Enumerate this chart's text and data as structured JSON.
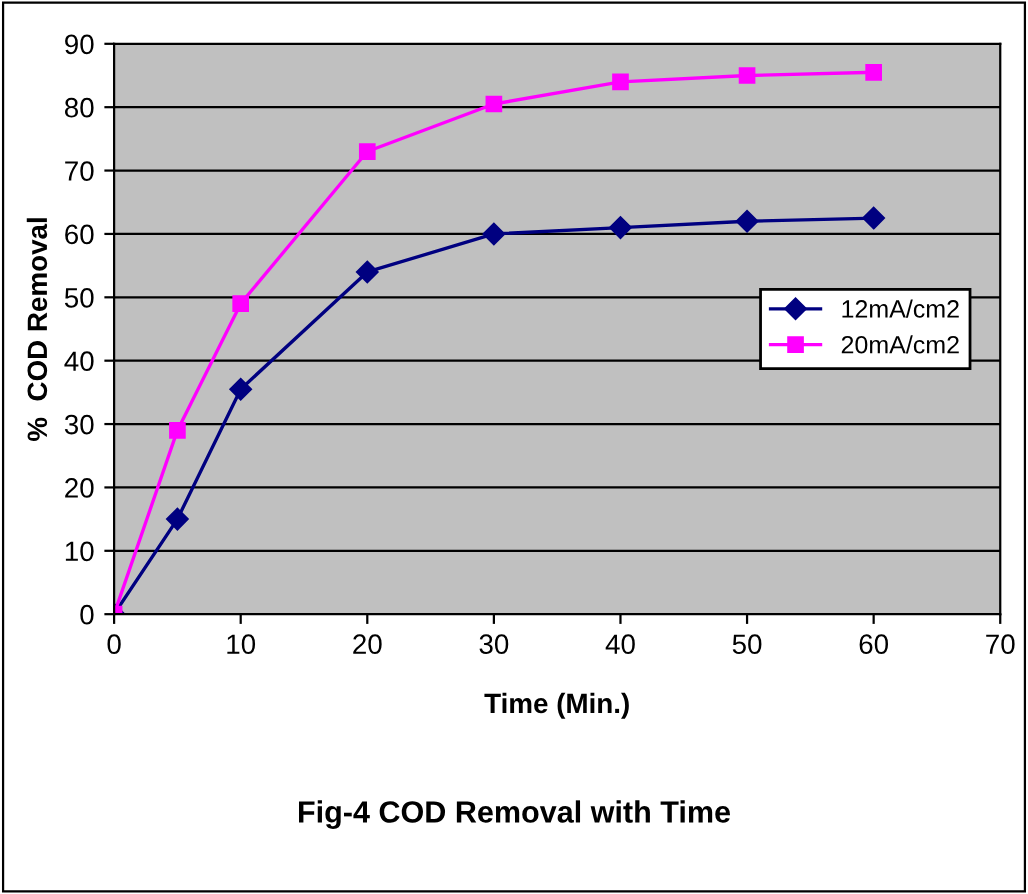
{
  "chart_data": {
    "type": "line",
    "xlabel": "Time (Min.)",
    "ylabel": "%  COD Removal",
    "x": [
      0,
      5,
      10,
      20,
      30,
      40,
      50,
      60
    ],
    "series": [
      {
        "name": "12mA/cm2",
        "color": "#000080",
        "marker": "diamond",
        "values": [
          0,
          15,
          35.5,
          54,
          60,
          61,
          62,
          62.5
        ]
      },
      {
        "name": "20mA/cm2",
        "color": "#ff00ff",
        "marker": "square",
        "values": [
          0,
          29,
          49,
          73,
          80.5,
          84,
          85,
          85.5
        ]
      }
    ],
    "xlim": [
      0,
      70
    ],
    "xticks": [
      0,
      10,
      20,
      30,
      40,
      50,
      60,
      70
    ],
    "ylim": [
      0,
      90
    ],
    "yticks": [
      0,
      10,
      20,
      30,
      40,
      50,
      60,
      70,
      80,
      90
    ],
    "grid": "y",
    "legend": "right",
    "annotations": [
      "Fig-4 COD Removal with Time"
    ]
  }
}
